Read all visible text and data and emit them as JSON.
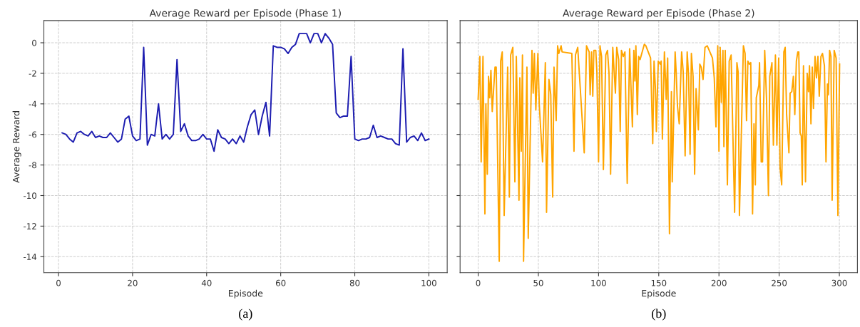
{
  "chart_data": [
    {
      "type": "line",
      "title": "Average Reward per Episode (Phase 1)",
      "xlabel": "Episode",
      "ylabel": "Average Reward",
      "annotations": [
        "(a)"
      ],
      "grid": true,
      "xlim": [
        -3.95,
        104.95
      ],
      "ylim": [
        -15.05,
        1.45
      ],
      "xticks": [
        0,
        20,
        40,
        60,
        80,
        100
      ],
      "yticks": [
        -14,
        -12,
        -10,
        -8,
        -6,
        -4,
        -2,
        0
      ],
      "x": [
        1,
        2,
        3,
        4,
        5,
        6,
        7,
        8,
        9,
        10,
        11,
        12,
        13,
        14,
        15,
        16,
        17,
        18,
        19,
        20,
        21,
        22,
        23,
        24,
        25,
        26,
        27,
        28,
        29,
        30,
        31,
        32,
        33,
        34,
        35,
        36,
        37,
        38,
        39,
        40,
        41,
        42,
        43,
        44,
        45,
        46,
        47,
        48,
        49,
        50,
        51,
        52,
        53,
        54,
        55,
        56,
        57,
        58,
        59,
        60,
        61,
        62,
        63,
        64,
        65,
        66,
        67,
        68,
        69,
        70,
        71,
        72,
        73,
        74,
        75,
        76,
        77,
        78,
        79,
        80,
        81,
        82,
        83,
        84,
        85,
        86,
        87,
        88,
        89,
        90,
        91,
        92,
        93,
        94,
        95,
        96,
        97,
        98,
        99,
        100
      ],
      "series": [
        {
          "color": "#1c1cb0",
          "values": [
            -5.9,
            -6.0,
            -6.3,
            -6.5,
            -5.9,
            -5.8,
            -6.0,
            -6.1,
            -5.8,
            -6.2,
            -6.1,
            -6.2,
            -6.2,
            -5.9,
            -6.2,
            -6.5,
            -6.3,
            -5.0,
            -4.8,
            -6.1,
            -6.4,
            -6.3,
            -0.3,
            -6.7,
            -6.0,
            -6.1,
            -4.0,
            -6.3,
            -6.0,
            -6.3,
            -6.0,
            -1.1,
            -5.8,
            -5.3,
            -6.1,
            -6.4,
            -6.4,
            -6.3,
            -6.0,
            -6.3,
            -6.3,
            -7.1,
            -5.7,
            -6.2,
            -6.3,
            -6.6,
            -6.3,
            -6.6,
            -6.1,
            -6.5,
            -5.5,
            -4.7,
            -4.4,
            -6.0,
            -4.8,
            -3.9,
            -6.1,
            -0.2,
            -0.3,
            -0.3,
            -0.4,
            -0.7,
            -0.3,
            -0.1,
            0.6,
            0.6,
            0.6,
            0.0,
            0.6,
            0.6,
            0.0,
            0.6,
            0.3,
            -0.1,
            -4.6,
            -4.9,
            -4.8,
            -4.8,
            -0.9,
            -6.3,
            -6.4,
            -6.3,
            -6.3,
            -6.2,
            -5.4,
            -6.2,
            -6.1,
            -6.2,
            -6.3,
            -6.3,
            -6.6,
            -6.7,
            -0.4,
            -6.5,
            -6.2,
            -6.1,
            -6.4,
            -5.9,
            -6.4,
            -6.3
          ]
        }
      ]
    },
    {
      "type": "line",
      "title": "Average Reward per Episode (Phase 2)",
      "xlabel": "Episode",
      "annotations": [
        "(b)"
      ],
      "grid": true,
      "tick_labels": "x",
      "xlim": [
        -15,
        315
      ],
      "ylim": [
        -15.05,
        1.45
      ],
      "xticks": [
        0,
        50,
        100,
        150,
        200,
        250,
        300
      ],
      "yticks": [
        -14,
        -12,
        -10,
        -8,
        -6,
        -4,
        -2,
        0
      ],
      "series": [
        {
          "color": "#ffa500",
          "x": [
            0,
            1.4,
            2.5,
            4,
            5.6,
            6.4,
            7.6,
            8.6,
            9.6,
            10.6,
            11.7,
            14,
            15,
            17.5,
            18.7,
            20,
            21.6,
            24.5,
            25.9,
            27,
            28.8,
            30.5,
            31.7,
            33.9,
            34.6,
            35.8,
            36.8,
            37.7,
            40.5,
            41.6,
            44.7,
            45.7,
            46.7,
            47.9,
            49.6,
            50.8,
            53.5,
            55.8,
            56.8,
            58.8,
            60.3,
            61.9,
            63,
            64.8,
            66,
            67,
            68.9,
            69.7,
            77.8,
            79.6,
            80.8,
            82.7,
            88.1,
            90,
            92.2,
            93,
            94.2,
            95.2,
            96.1,
            97.7,
            98.6,
            100,
            101.2,
            102.5,
            104,
            106,
            107.4,
            108.7,
            110,
            111.8,
            114,
            115.1,
            116.7,
            118,
            119,
            120.5,
            121.9,
            123.8,
            125.8,
            128.1,
            129.3,
            130.2,
            131,
            132.2,
            133.3,
            134.5,
            138,
            139.3,
            143.2,
            145,
            146.1,
            147.3,
            148,
            149.6,
            151.2,
            152,
            153,
            154.7,
            156.2,
            157.4,
            158.9,
            160.5,
            161.2,
            163.6,
            164.5,
            165.5,
            167,
            169,
            170.3,
            171.9,
            173.6,
            174.8,
            176,
            177.1,
            178.5,
            179.8,
            181,
            182.9,
            184.1,
            185.3,
            186.8,
            188.4,
            190.3,
            194.6,
            196.1,
            197.5,
            199,
            200,
            201,
            202,
            203.3,
            204.1,
            205.2,
            207,
            208.5,
            210.1,
            213,
            214.9,
            215.9,
            217,
            220.3,
            221.7,
            222.9,
            224,
            225.2,
            226.4,
            227.9,
            229.1,
            230.2,
            231,
            233.1,
            233.7,
            235.1,
            236.2,
            238,
            239.5,
            241.1,
            242.2,
            244,
            245.2,
            246.9,
            248.1,
            249.6,
            250.8,
            252.1,
            253.9,
            255,
            256.2,
            258.1,
            259.1,
            260.5,
            261.8,
            263,
            264.3,
            265.5,
            266.3,
            267.4,
            268.4,
            269.2,
            270.2,
            271.9,
            273.3,
            274.4,
            275.2,
            276.4,
            277.5,
            278.5,
            279.8,
            281,
            282.2,
            283.3,
            284.7,
            286,
            287.6,
            288.9,
            290.1,
            290.9,
            291.9,
            293,
            294,
            295.7,
            297.3,
            298.8,
            300.2
          ],
          "values": [
            -3.7,
            -0.9,
            -7.8,
            -0.9,
            -11.2,
            -4.0,
            -8.6,
            -2.2,
            -3.6,
            -1.8,
            -4.5,
            -1.6,
            -1.6,
            -14.3,
            -1.2,
            -0.6,
            -11.3,
            -1.6,
            -10.1,
            -0.8,
            -0.3,
            -9.1,
            -0.9,
            -10.3,
            -2.3,
            -7.1,
            -0.8,
            -14.3,
            -1.6,
            -12.8,
            -0.5,
            -3.3,
            -0.7,
            -4.4,
            -0.7,
            -4.1,
            -7.8,
            -1.3,
            -11.1,
            -2.4,
            -3.4,
            -10.1,
            -1.6,
            -5.1,
            -0.2,
            -0.7,
            -0.2,
            -0.6,
            -0.7,
            -7.1,
            -0.8,
            -0.3,
            -7.2,
            -0.2,
            -0.6,
            -3.4,
            -0.6,
            -3.5,
            -0.5,
            -0.5,
            -1.9,
            -7.8,
            -0.2,
            -0.9,
            -8.3,
            -0.8,
            -0.5,
            -2.0,
            -8.6,
            -0.3,
            -3.3,
            -0.3,
            -1.1,
            -5.8,
            -0.5,
            -0.9,
            -0.6,
            -9.2,
            -0.4,
            -5.5,
            -0.5,
            -2.5,
            -0.2,
            -4.7,
            -0.9,
            -1.1,
            -0.1,
            -0.2,
            -1.0,
            -6.6,
            -1.2,
            -3.1,
            -5.8,
            -1.2,
            -1.4,
            -1.2,
            -6.3,
            -0.6,
            -3.7,
            -1.0,
            -12.5,
            -3.2,
            -9.1,
            -0.6,
            -2.0,
            -4.1,
            -5.3,
            -0.6,
            -1.9,
            -7.4,
            -0.6,
            -2.2,
            -7.3,
            -0.7,
            -2.2,
            -8.6,
            -3.0,
            -5.7,
            -1.4,
            -1.6,
            -2.4,
            -0.3,
            -0.2,
            -1.0,
            -2.3,
            -5.5,
            -0.2,
            -7.1,
            -0.3,
            -3.9,
            -0.5,
            -6.8,
            -0.5,
            -9.3,
            -1.2,
            -0.8,
            -11.1,
            -1.3,
            -1.9,
            -11.3,
            -0.2,
            -0.7,
            -5.1,
            -1.2,
            -1.4,
            -1.3,
            -11.2,
            -5.3,
            -9.3,
            -3.6,
            -2.8,
            -1.3,
            -7.8,
            -7.8,
            -0.5,
            -3.7,
            -10.0,
            -2.2,
            -1.3,
            -6.7,
            -0.8,
            -6.7,
            -1.0,
            -8.2,
            -9.3,
            -0.6,
            -0.3,
            -4.7,
            -7.2,
            -3.3,
            -3.2,
            -2.2,
            -4.7,
            -1.2,
            -0.6,
            -0.6,
            -5.9,
            -6.1,
            -9.3,
            -1.5,
            -9.1,
            -2.0,
            -3.2,
            -1.5,
            -5.3,
            -1.6,
            -4.3,
            -0.9,
            -2.3,
            -0.9,
            -3.5,
            -0.9,
            -0.7,
            -1.5,
            -7.8,
            -2.7,
            -3.4,
            -0.5,
            -0.9,
            -10.3,
            -0.5,
            -1.0,
            -11.3,
            -1.4
          ]
        }
      ]
    }
  ]
}
